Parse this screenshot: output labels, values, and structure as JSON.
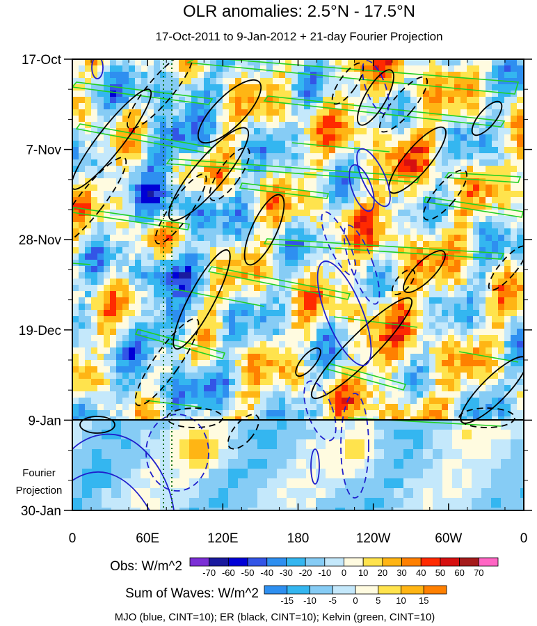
{
  "chart_data": {
    "type": "heatmap",
    "title": "OLR anomalies: 2.5°N - 17.5°N",
    "subtitle": "17-Oct-2011 to 9-Jan-2012 + 21-day Fourier Projection",
    "x_tick_labels": [
      "0",
      "60E",
      "120E",
      "180",
      "120W",
      "60W",
      "0"
    ],
    "y_tick_labels": [
      "17-Oct",
      "7-Nov",
      "28-Nov",
      "19-Dec",
      "9-Jan",
      "30-Jan"
    ],
    "projection_label": [
      "Fourier",
      "Projection"
    ],
    "divider_date": "9-Jan",
    "obs_colorbar": {
      "label": "Obs: W/m^2",
      "levels": [
        "-70",
        "-60",
        "-50",
        "-40",
        "-30",
        "-20",
        "-10",
        "0",
        "10",
        "20",
        "30",
        "40",
        "50",
        "60",
        "70"
      ],
      "colors": [
        "#7b2fd6",
        "#1a1a9e",
        "#0000d6",
        "#3355e6",
        "#2e8ff0",
        "#34b6f0",
        "#86ccf5",
        "#c4e8fb",
        "#fffbe0",
        "#ffe34d",
        "#ffb514",
        "#ff8000",
        "#ff2a00",
        "#d61010",
        "#a51b1b",
        "#ff66c4"
      ]
    },
    "waves_colorbar": {
      "label": "Sum of Waves: W/m^2",
      "levels": [
        "-15",
        "-10",
        "-5",
        "0",
        "5",
        "10",
        "15"
      ],
      "colors": [
        "#2e8ff0",
        "#34b6f0",
        "#86ccf5",
        "#c4e8fb",
        "#fffbe0",
        "#ffe34d",
        "#ffb514",
        "#ff8000"
      ]
    },
    "legend_text": "MJO (blue, CINT=10); ER (black, CINT=10); Kelvin (green, CINT=10)",
    "contour_series": [
      {
        "name": "MJO",
        "color": "#1f1fcc"
      },
      {
        "name": "ER",
        "color": "#000000"
      },
      {
        "name": "Kelvin",
        "color": "#22d022"
      }
    ]
  }
}
